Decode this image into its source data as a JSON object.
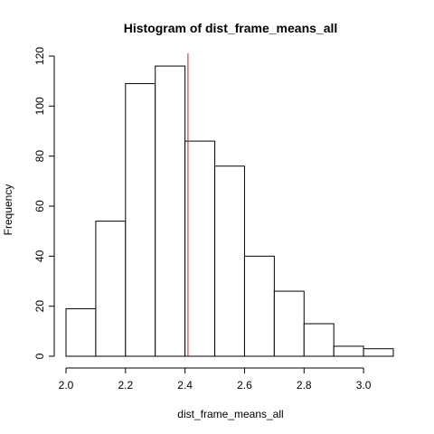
{
  "chart_data": {
    "type": "bar",
    "title": "Histogram of dist_frame_means_all",
    "xlabel": "dist_frame_means_all",
    "ylabel": "Frequency",
    "xlim": [
      2.0,
      3.1
    ],
    "ylim": [
      0,
      120
    ],
    "bins": [
      {
        "start": 2.0,
        "end": 2.1,
        "count": 19
      },
      {
        "start": 2.1,
        "end": 2.2,
        "count": 54
      },
      {
        "start": 2.2,
        "end": 2.3,
        "count": 109
      },
      {
        "start": 2.3,
        "end": 2.4,
        "count": 116
      },
      {
        "start": 2.4,
        "end": 2.5,
        "count": 86
      },
      {
        "start": 2.5,
        "end": 2.6,
        "count": 76
      },
      {
        "start": 2.6,
        "end": 2.7,
        "count": 40
      },
      {
        "start": 2.7,
        "end": 2.8,
        "count": 26
      },
      {
        "start": 2.8,
        "end": 2.9,
        "count": 13
      },
      {
        "start": 2.9,
        "end": 3.0,
        "count": 4
      },
      {
        "start": 3.0,
        "end": 3.1,
        "count": 3
      }
    ],
    "x_ticks": [
      "2.0",
      "2.2",
      "2.4",
      "2.6",
      "2.8",
      "3.0"
    ],
    "y_ticks": [
      "0",
      "20",
      "40",
      "60",
      "80",
      "100",
      "120"
    ],
    "reference_line": {
      "x": 2.41,
      "color": "#d11a2a"
    },
    "grid": false,
    "legend": "none"
  }
}
